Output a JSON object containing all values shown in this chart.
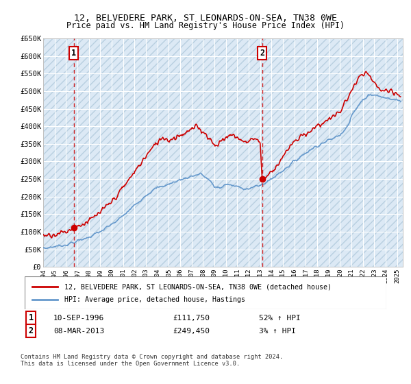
{
  "title1": "12, BELVEDERE PARK, ST LEONARDS-ON-SEA, TN38 0WE",
  "title2": "Price paid vs. HM Land Registry's House Price Index (HPI)",
  "ylim": [
    0,
    650000
  ],
  "yticks": [
    0,
    50000,
    100000,
    150000,
    200000,
    250000,
    300000,
    350000,
    400000,
    450000,
    500000,
    550000,
    600000,
    650000
  ],
  "ytick_labels": [
    "£0",
    "£50K",
    "£100K",
    "£150K",
    "£200K",
    "£250K",
    "£300K",
    "£350K",
    "£400K",
    "£450K",
    "£500K",
    "£550K",
    "£600K",
    "£650K"
  ],
  "xlim_start": 1994.0,
  "xlim_end": 2025.5,
  "sale1_x": 1996.69,
  "sale1_y": 111750,
  "sale1_label": "1",
  "sale1_date": "10-SEP-1996",
  "sale1_price": "£111,750",
  "sale1_hpi": "52% ↑ HPI",
  "sale2_x": 2013.18,
  "sale2_y": 249450,
  "sale2_label": "2",
  "sale2_date": "08-MAR-2013",
  "sale2_price": "£249,450",
  "sale2_hpi": "3% ↑ HPI",
  "legend_line1": "12, BELVEDERE PARK, ST LEONARDS-ON-SEA, TN38 0WE (detached house)",
  "legend_line2": "HPI: Average price, detached house, Hastings",
  "footer": "Contains HM Land Registry data © Crown copyright and database right 2024.\nThis data is licensed under the Open Government Licence v3.0.",
  "bg_color": "#dce9f5",
  "hatch_color": "#b8cfe0",
  "grid_color": "#ffffff",
  "red_line_color": "#cc0000",
  "blue_line_color": "#6699cc"
}
